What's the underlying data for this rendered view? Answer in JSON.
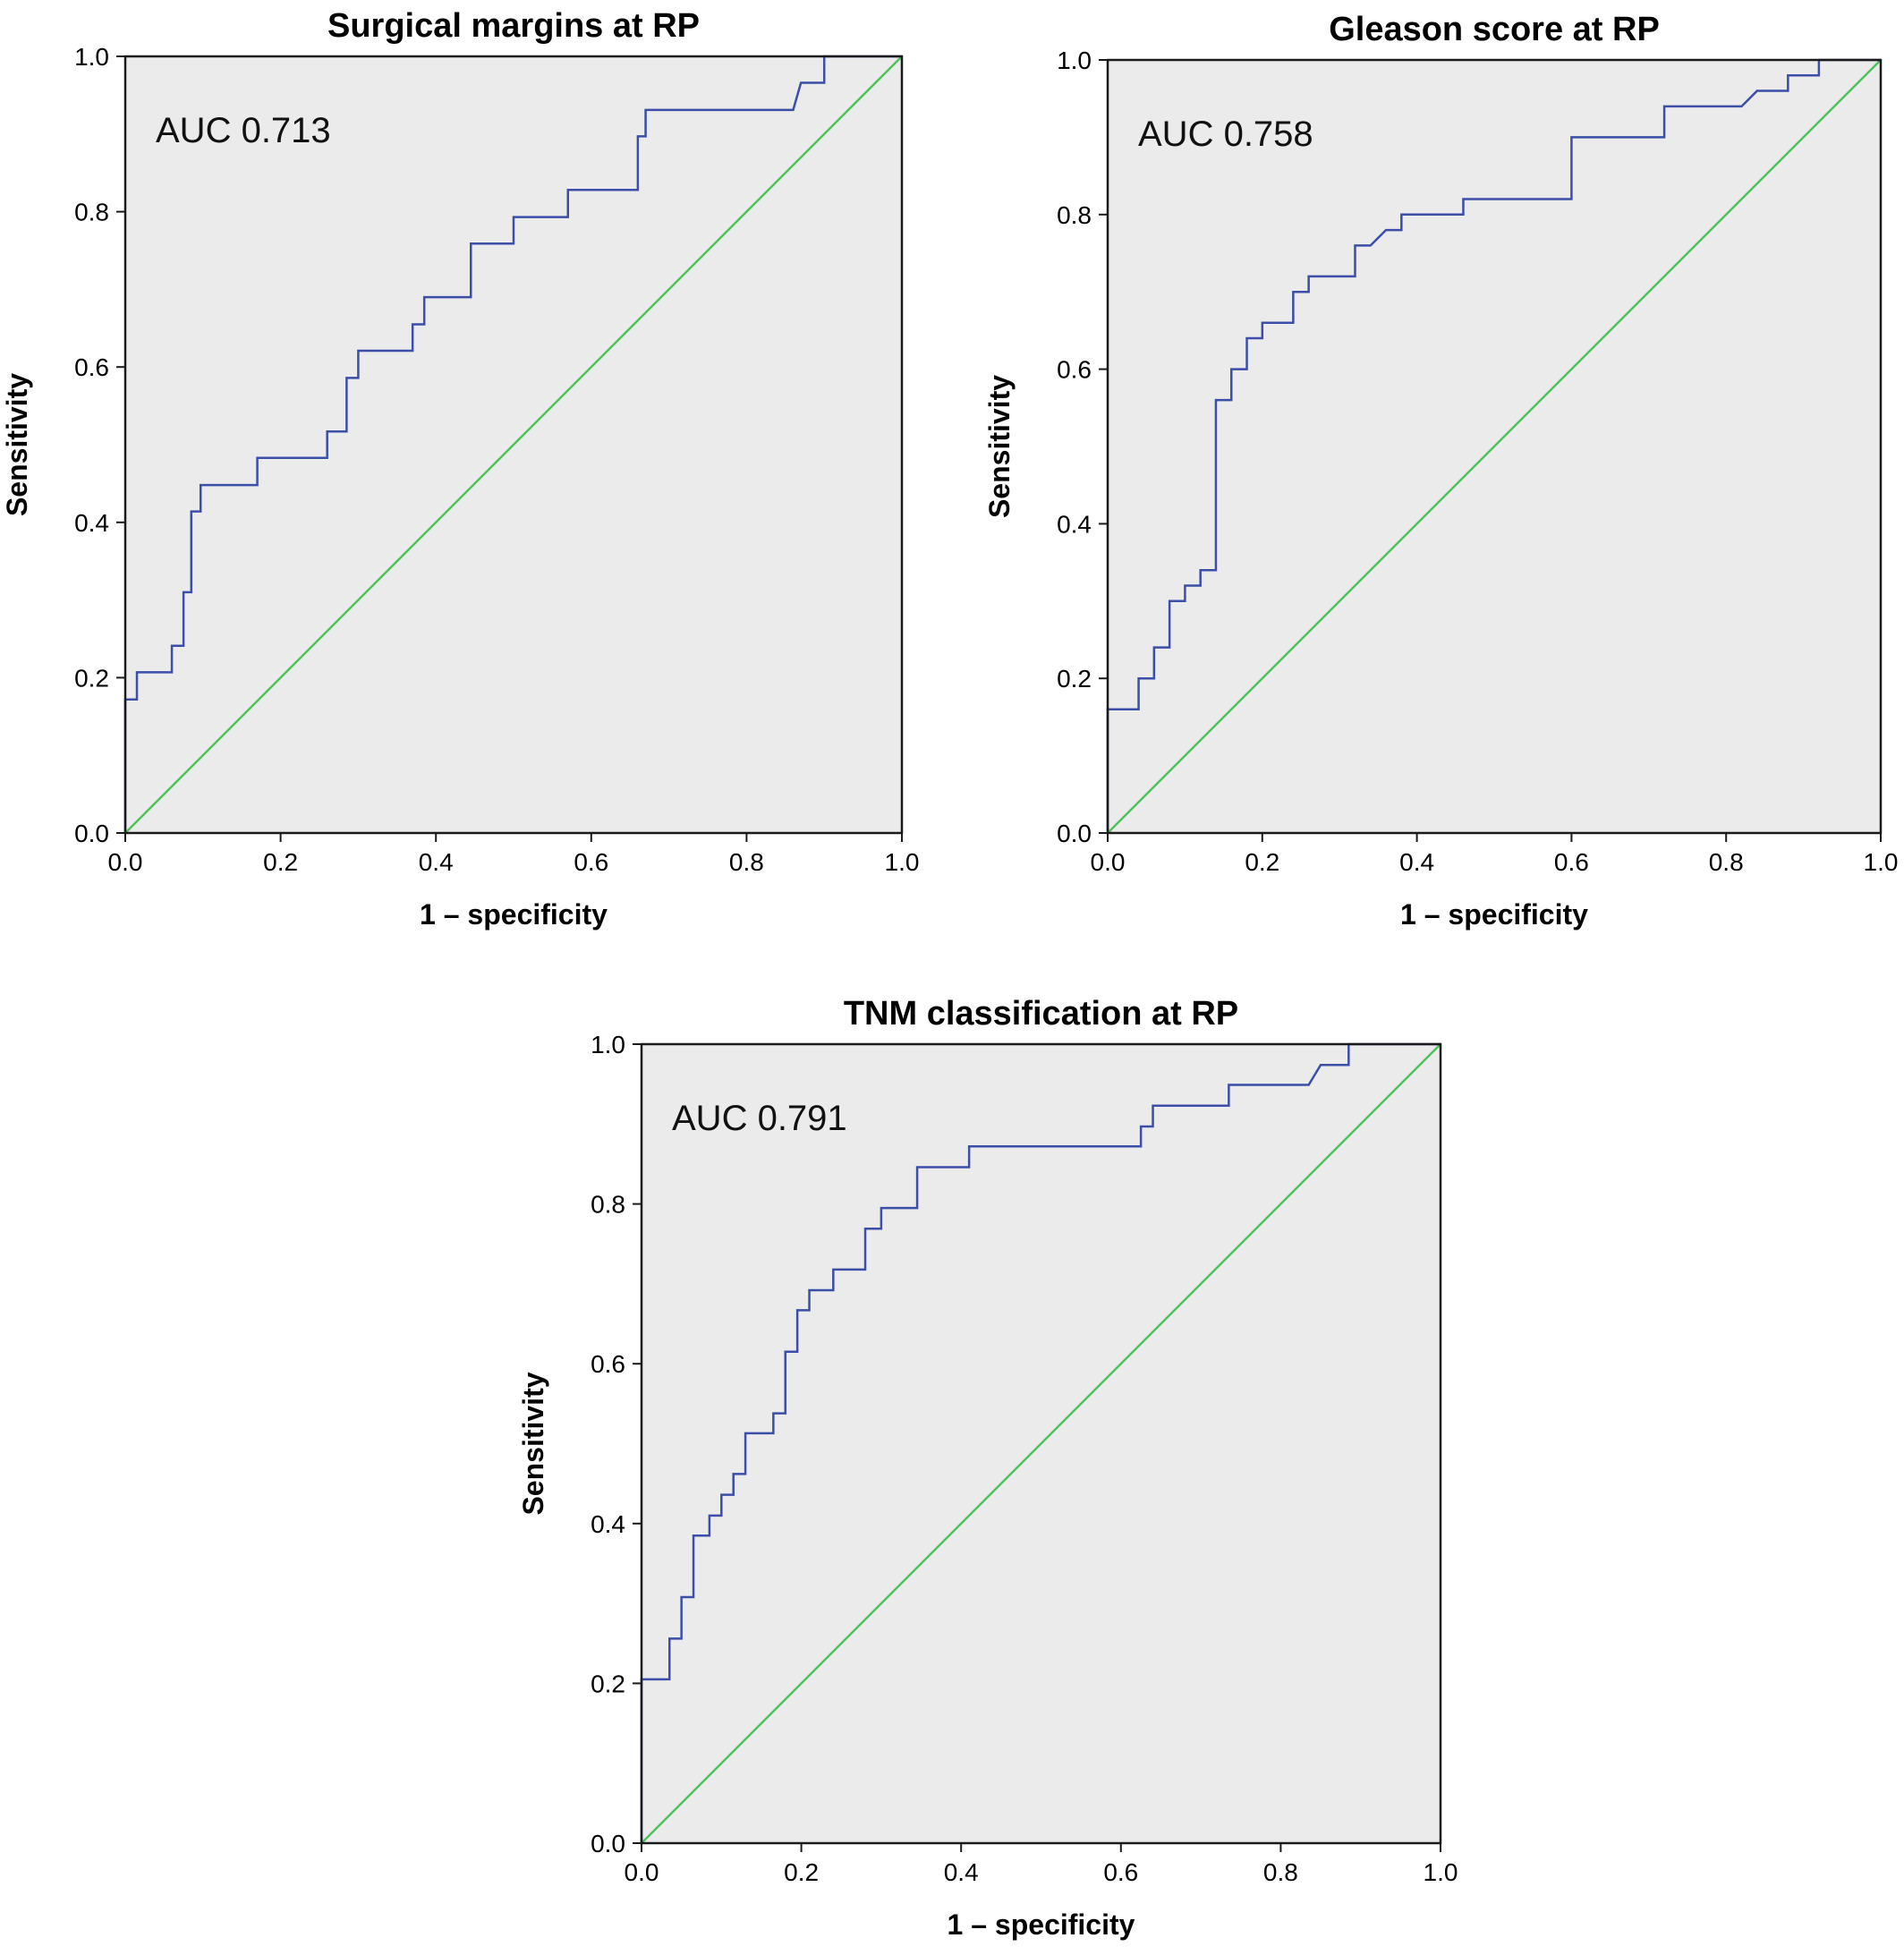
{
  "chart_data": [
    {
      "type": "line",
      "title": "Surgical margins at RP",
      "xlabel": "1 – specificity",
      "ylabel": "Sensitivity",
      "annotation": "AUC 0.713",
      "xlim": [
        0,
        1
      ],
      "ylim": [
        0,
        1
      ],
      "xticks": [
        "0.0",
        "0.2",
        "0.4",
        "0.6",
        "0.8",
        "1.0"
      ],
      "yticks": [
        "0.0",
        "0.2",
        "0.4",
        "0.6",
        "0.8",
        "1.0"
      ],
      "grid": false,
      "colors": {
        "roc": "#3b4ea8",
        "reference": "#4cc25a",
        "panel": "#ebebeb",
        "frame": "#1a1a1a"
      },
      "series": [
        {
          "x": [
            0,
            0,
            0.015,
            0.015,
            0.06,
            0.06,
            0.075,
            0.075,
            0.085,
            0.085,
            0.097,
            0.097,
            0.17,
            0.17,
            0.26,
            0.26,
            0.285,
            0.285,
            0.3,
            0.3,
            0.37,
            0.37,
            0.385,
            0.385,
            0.445,
            0.445,
            0.5,
            0.5,
            0.57,
            0.57,
            0.66,
            0.66,
            0.67,
            0.67,
            0.86,
            0.87,
            0.9,
            0.9,
            1.0
          ],
          "y": [
            0,
            0.172,
            0.172,
            0.207,
            0.207,
            0.241,
            0.241,
            0.31,
            0.31,
            0.414,
            0.414,
            0.448,
            0.448,
            0.483,
            0.483,
            0.517,
            0.517,
            0.586,
            0.586,
            0.621,
            0.621,
            0.655,
            0.655,
            0.69,
            0.69,
            0.759,
            0.759,
            0.793,
            0.793,
            0.828,
            0.828,
            0.897,
            0.897,
            0.931,
            0.931,
            0.966,
            0.966,
            1.0,
            1.0
          ]
        },
        {
          "x": [
            0,
            1
          ],
          "y": [
            0,
            1
          ]
        }
      ]
    },
    {
      "type": "line",
      "title": "Gleason score at RP",
      "xlabel": "1 – specificity",
      "ylabel": "Sensitivity",
      "annotation": "AUC 0.758",
      "xlim": [
        0,
        1
      ],
      "ylim": [
        0,
        1
      ],
      "xticks": [
        "0.0",
        "0.2",
        "0.4",
        "0.6",
        "0.8",
        "1.0"
      ],
      "yticks": [
        "0.0",
        "0.2",
        "0.4",
        "0.6",
        "0.8",
        "1.0"
      ],
      "grid": false,
      "colors": {
        "roc": "#3b4ea8",
        "reference": "#4cc25a",
        "panel": "#ebebeb",
        "frame": "#1a1a1a"
      },
      "series": [
        {
          "x": [
            0,
            0,
            0.04,
            0.04,
            0.06,
            0.06,
            0.08,
            0.08,
            0.1,
            0.1,
            0.12,
            0.12,
            0.14,
            0.14,
            0.16,
            0.16,
            0.18,
            0.18,
            0.2,
            0.2,
            0.24,
            0.24,
            0.26,
            0.26,
            0.32,
            0.32,
            0.34,
            0.36,
            0.38,
            0.38,
            0.46,
            0.46,
            0.6,
            0.6,
            0.72,
            0.72,
            0.82,
            0.84,
            0.88,
            0.88,
            0.92,
            0.92,
            1.0
          ],
          "y": [
            0,
            0.16,
            0.16,
            0.2,
            0.2,
            0.24,
            0.24,
            0.3,
            0.3,
            0.32,
            0.32,
            0.34,
            0.34,
            0.56,
            0.56,
            0.6,
            0.6,
            0.64,
            0.64,
            0.66,
            0.66,
            0.7,
            0.7,
            0.72,
            0.72,
            0.76,
            0.76,
            0.78,
            0.78,
            0.8,
            0.8,
            0.82,
            0.82,
            0.9,
            0.9,
            0.94,
            0.94,
            0.96,
            0.96,
            0.98,
            0.98,
            1.0,
            1.0
          ]
        },
        {
          "x": [
            0,
            1
          ],
          "y": [
            0,
            1
          ]
        }
      ]
    },
    {
      "type": "line",
      "title": "TNM classification at RP",
      "xlabel": "1 – specificity",
      "ylabel": "Sensitivity",
      "annotation": "AUC 0.791",
      "xlim": [
        0,
        1
      ],
      "ylim": [
        0,
        1
      ],
      "xticks": [
        "0.0",
        "0.2",
        "0.4",
        "0.6",
        "0.8",
        "1.0"
      ],
      "yticks": [
        "0.0",
        "0.2",
        "0.4",
        "0.6",
        "0.8",
        "1.0"
      ],
      "grid": false,
      "colors": {
        "roc": "#3b4ea8",
        "reference": "#4cc25a",
        "panel": "#ebebeb",
        "frame": "#1a1a1a"
      },
      "series": [
        {
          "x": [
            0,
            0,
            0.035,
            0.035,
            0.05,
            0.05,
            0.065,
            0.065,
            0.085,
            0.085,
            0.1,
            0.1,
            0.115,
            0.115,
            0.13,
            0.13,
            0.165,
            0.165,
            0.18,
            0.18,
            0.195,
            0.195,
            0.21,
            0.21,
            0.24,
            0.24,
            0.28,
            0.28,
            0.3,
            0.3,
            0.345,
            0.345,
            0.41,
            0.41,
            0.625,
            0.625,
            0.64,
            0.64,
            0.735,
            0.735,
            0.835,
            0.85,
            0.885,
            0.885,
            1.0
          ],
          "y": [
            0,
            0.205,
            0.205,
            0.256,
            0.256,
            0.308,
            0.308,
            0.385,
            0.385,
            0.41,
            0.41,
            0.436,
            0.436,
            0.462,
            0.462,
            0.513,
            0.513,
            0.538,
            0.538,
            0.615,
            0.615,
            0.667,
            0.667,
            0.692,
            0.692,
            0.718,
            0.718,
            0.769,
            0.769,
            0.795,
            0.795,
            0.846,
            0.846,
            0.872,
            0.872,
            0.897,
            0.897,
            0.923,
            0.923,
            0.949,
            0.949,
            0.974,
            0.974,
            1.0,
            1.0
          ]
        },
        {
          "x": [
            0,
            1
          ],
          "y": [
            0,
            1
          ]
        }
      ]
    }
  ]
}
